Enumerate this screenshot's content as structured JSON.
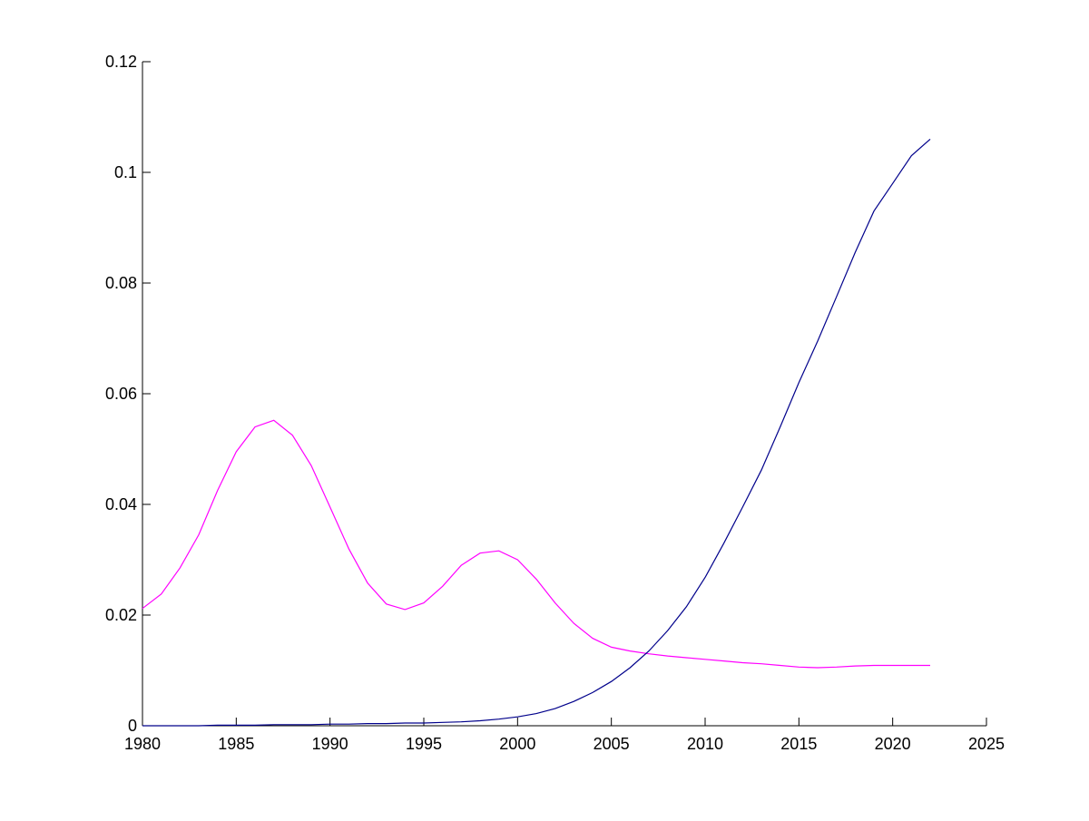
{
  "chart_data": {
    "type": "line",
    "title": "",
    "xlabel": "",
    "ylabel": "",
    "xlim": [
      1980,
      2025
    ],
    "ylim": [
      0,
      0.12
    ],
    "x_ticks": [
      1980,
      1985,
      1990,
      1995,
      2000,
      2005,
      2010,
      2015,
      2020,
      2025
    ],
    "x_tick_labels": [
      "1980",
      "1985",
      "1990",
      "1995",
      "2000",
      "2005",
      "2010",
      "2015",
      "2020",
      "2025"
    ],
    "y_ticks": [
      0,
      0.02,
      0.04,
      0.06,
      0.08,
      0.1,
      0.12
    ],
    "y_tick_labels": [
      "0",
      "0.02",
      "0.04",
      "0.06",
      "0.08",
      "0.1",
      "0.12"
    ],
    "grid": false,
    "legend": "none",
    "x": [
      1980,
      1981,
      1982,
      1983,
      1984,
      1985,
      1986,
      1987,
      1988,
      1989,
      1990,
      1991,
      1992,
      1993,
      1994,
      1995,
      1996,
      1997,
      1998,
      1999,
      2000,
      2001,
      2002,
      2003,
      2004,
      2005,
      2006,
      2007,
      2008,
      2009,
      2010,
      2011,
      2012,
      2013,
      2014,
      2015,
      2016,
      2017,
      2018,
      2019,
      2020,
      2021,
      2022
    ],
    "series": [
      {
        "color": "#ff00ff",
        "values": [
          0.0212,
          0.0238,
          0.0285,
          0.0345,
          0.0425,
          0.0495,
          0.054,
          0.0552,
          0.0525,
          0.047,
          0.0395,
          0.032,
          0.0258,
          0.022,
          0.021,
          0.0222,
          0.0252,
          0.029,
          0.0312,
          0.0316,
          0.03,
          0.0265,
          0.0222,
          0.0185,
          0.0158,
          0.0142,
          0.0135,
          0.013,
          0.0126,
          0.0123,
          0.012,
          0.0117,
          0.0114,
          0.0112,
          0.0109,
          0.0106,
          0.0105,
          0.0106,
          0.0108,
          0.0109,
          0.0109,
          0.0109,
          0.0109
        ]
      },
      {
        "color": "#00008b",
        "values": [
          0,
          0,
          0,
          0,
          0.0001,
          0.0001,
          0.0001,
          0.0002,
          0.0002,
          0.0002,
          0.0003,
          0.0003,
          0.0004,
          0.0004,
          0.0005,
          0.0005,
          0.0006,
          0.0007,
          0.0009,
          0.0012,
          0.0016,
          0.0022,
          0.0031,
          0.0044,
          0.006,
          0.008,
          0.0105,
          0.0135,
          0.0172,
          0.0215,
          0.0268,
          0.033,
          0.0395,
          0.0462,
          0.054,
          0.062,
          0.0695,
          0.0775,
          0.0855,
          0.093,
          0.098,
          0.103,
          0.106
        ]
      }
    ]
  }
}
